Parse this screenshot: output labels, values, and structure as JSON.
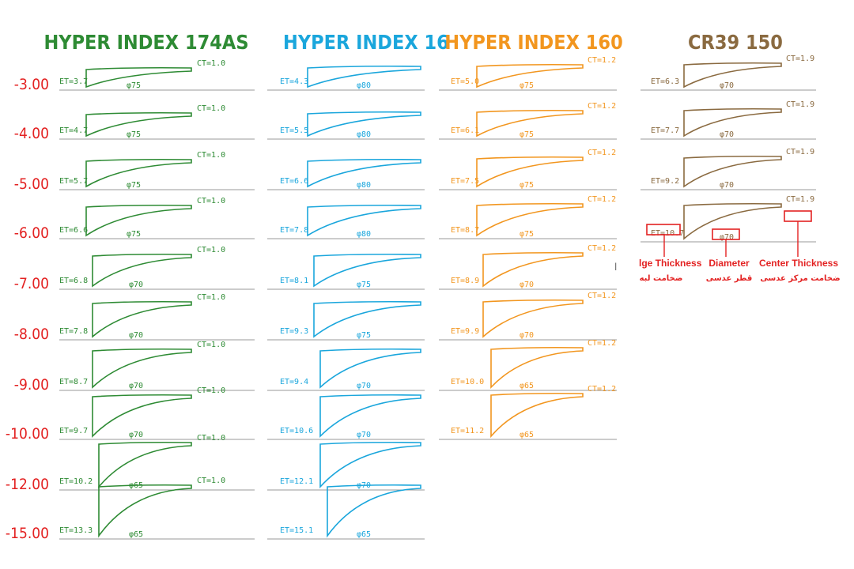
{
  "colors": {
    "c1": "#2e8b34",
    "c2": "#1aa6dc",
    "c3": "#f2961f",
    "c4": "#8a6a40",
    "power": "#e32222",
    "legend": "#e32222",
    "baseline": "#999999"
  },
  "powers": [
    "-3.00",
    "-4.00",
    "-5.00",
    "-6.00",
    "-7.00",
    "-8.00",
    "-9.00",
    "-10.00",
    "-12.00",
    "-15.00"
  ],
  "columns": [
    {
      "title": "HYPER INDEX 174AS",
      "color": "c1",
      "rows": [
        {
          "et": "ET=3.7",
          "ct": "CT=1.0",
          "dia": "φ75"
        },
        {
          "et": "ET=4.7",
          "ct": "CT=1.0",
          "dia": "φ75"
        },
        {
          "et": "ET=5.7",
          "ct": "CT=1.0",
          "dia": "φ75"
        },
        {
          "et": "ET=6.6",
          "ct": "CT=1.0",
          "dia": "φ75"
        },
        {
          "et": "ET=6.8",
          "ct": "CT=1.0",
          "dia": "φ70"
        },
        {
          "et": "ET=7.8",
          "ct": "CT=1.0",
          "dia": "φ70"
        },
        {
          "et": "ET=8.7",
          "ct": "CT=1.0",
          "dia": "φ70"
        },
        {
          "et": "ET=9.7",
          "ct": "CT=1.0",
          "dia": "φ70"
        },
        {
          "et": "ET=10.2",
          "ct": "CT=1.0",
          "dia": "φ65"
        },
        {
          "et": "ET=13.3",
          "ct": "CT=1.0",
          "dia": "φ65"
        }
      ]
    },
    {
      "title": "HYPER INDEX 16",
      "color": "c2",
      "rows": [
        {
          "et": "ET=4.3",
          "ct": "",
          "dia": "φ80"
        },
        {
          "et": "ET=5.5",
          "ct": "",
          "dia": "φ80"
        },
        {
          "et": "ET=6.6",
          "ct": "",
          "dia": "φ80"
        },
        {
          "et": "ET=7.8",
          "ct": "",
          "dia": "φ80"
        },
        {
          "et": "ET=8.1",
          "ct": "",
          "dia": "φ75"
        },
        {
          "et": "ET=9.3",
          "ct": "",
          "dia": "φ75"
        },
        {
          "et": "ET=9.4",
          "ct": "",
          "dia": "φ70"
        },
        {
          "et": "ET=10.6",
          "ct": "",
          "dia": "φ70"
        },
        {
          "et": "ET=12.1",
          "ct": "",
          "dia": "φ70"
        },
        {
          "et": "ET=15.1",
          "ct": "",
          "dia": "φ65"
        }
      ]
    },
    {
      "title": "HYPER INDEX 160",
      "color": "c3",
      "rows": [
        {
          "et": "ET=5.0",
          "ct": "CT=1.2",
          "dia": "φ75"
        },
        {
          "et": "ET=6.1",
          "ct": "CT=1.2",
          "dia": "φ75"
        },
        {
          "et": "ET=7.5",
          "ct": "CT=1.2",
          "dia": "φ75"
        },
        {
          "et": "ET=8.7",
          "ct": "CT=1.2",
          "dia": "φ75"
        },
        {
          "et": "ET=8.9",
          "ct": "CT=1.2",
          "dia": "φ70"
        },
        {
          "et": "ET=9.9",
          "ct": "CT=1.2",
          "dia": "φ70"
        },
        {
          "et": "ET=10.0",
          "ct": "CT=1.2",
          "dia": "φ65"
        },
        {
          "et": "ET=11.2",
          "ct": "CT=1.2",
          "dia": "φ65"
        }
      ]
    },
    {
      "title": "CR39 150",
      "color": "c4",
      "rows": [
        {
          "et": "ET=6.3",
          "ct": "CT=1.9",
          "dia": "φ70"
        },
        {
          "et": "ET=7.7",
          "ct": "CT=1.9",
          "dia": "φ70"
        },
        {
          "et": "ET=9.2",
          "ct": "CT=1.9",
          "dia": "φ70"
        },
        {
          "et": "ET=10.7",
          "ct": "CT=1.9",
          "dia": "φ70"
        }
      ]
    }
  ],
  "legend": {
    "edge_en": "lge Thickness",
    "edge_fa": "ضخامت لبه",
    "diameter_en": "Diameter",
    "diameter_fa": "قطر عدسی",
    "center_en": "Center Thickness",
    "center_fa": "ضخامت مرکز عدسی"
  },
  "marks": {
    "ct_cut_col3_row5": "l"
  }
}
